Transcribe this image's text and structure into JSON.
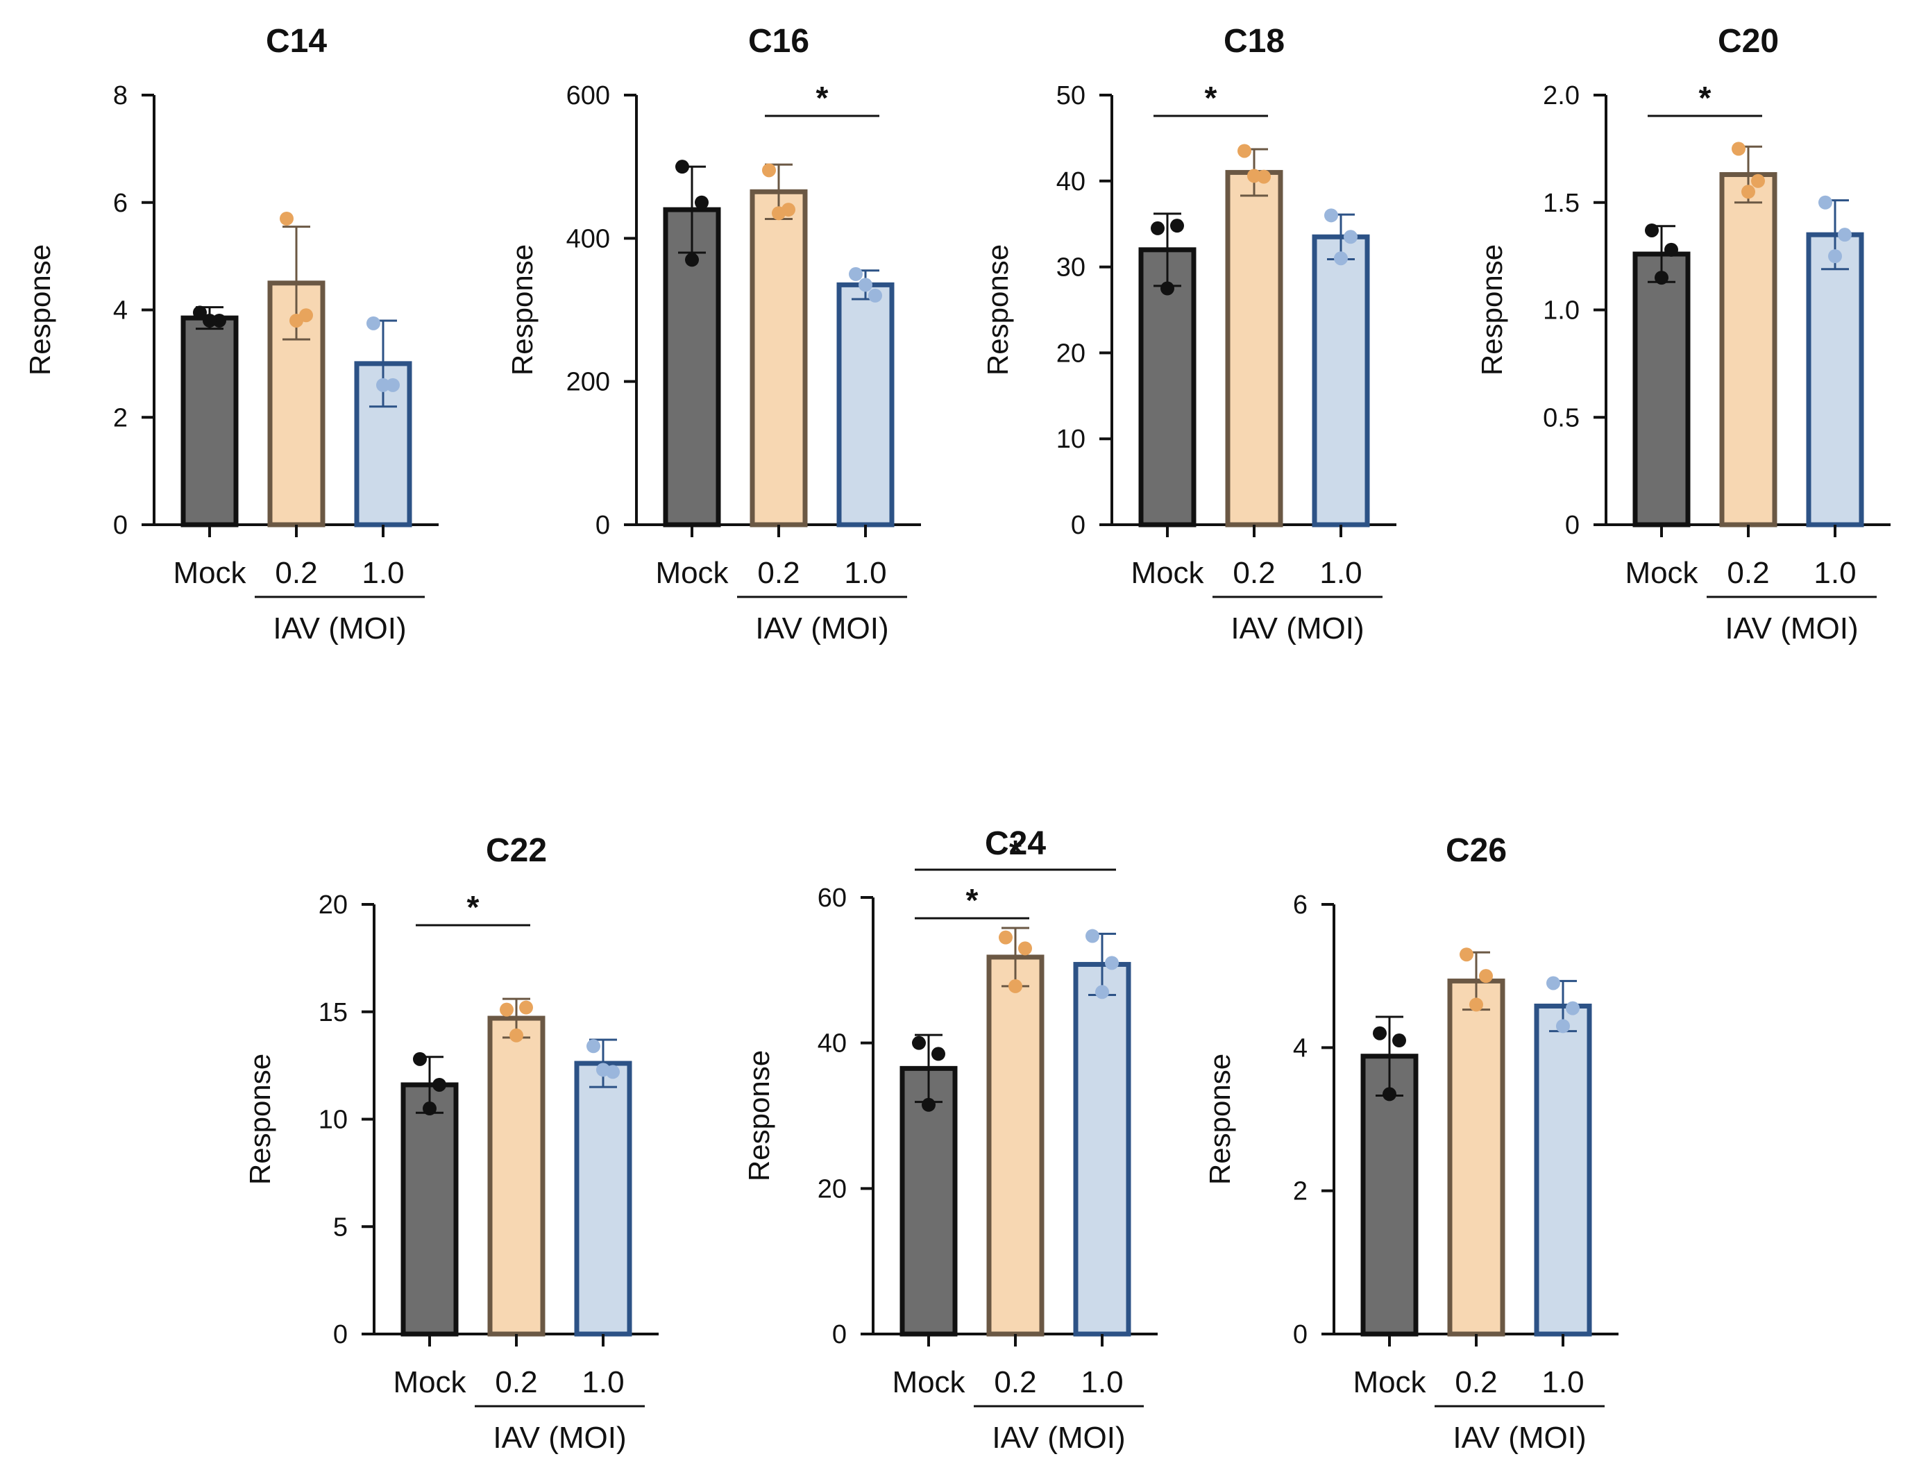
{
  "figure": {
    "group_label": "IAV (MOI)",
    "colors": {
      "mock_fill": "#6e6e6e",
      "mock_dot": "#111111",
      "moi02_fill": "#f7d7b2",
      "moi02_edge": "#6b5844",
      "moi02_dot": "#e8a45c",
      "moi10_fill": "#ccdaea",
      "moi10_edge": "#2c5286",
      "moi10_dot": "#9ab6dc",
      "axis": "#111111"
    }
  },
  "chart_data": [
    {
      "type": "bar",
      "title": "C14",
      "ylabel": "Response",
      "categories": [
        "Mock",
        "0.2",
        "1.0"
      ],
      "values": [
        3.85,
        4.5,
        3.0
      ],
      "errors": [
        0.2,
        1.05,
        0.8
      ],
      "points": [
        [
          3.95,
          3.8,
          3.8
        ],
        [
          5.7,
          3.9,
          3.8
        ],
        [
          3.75,
          2.6,
          2.6
        ]
      ],
      "ylim": [
        0,
        8
      ],
      "yticks": [
        "0",
        "2",
        "4",
        "6",
        "8"
      ],
      "ytick_values": [
        0,
        2,
        4,
        6,
        8
      ],
      "significance": []
    },
    {
      "type": "bar",
      "title": "C16",
      "ylabel": "Response",
      "categories": [
        "Mock",
        "0.2",
        "1.0"
      ],
      "values": [
        440,
        465,
        335
      ],
      "errors": [
        60,
        38,
        20
      ],
      "points": [
        [
          500,
          450,
          370
        ],
        [
          495,
          440,
          435
        ],
        [
          350,
          320,
          335
        ]
      ],
      "ylim": [
        0,
        600
      ],
      "yticks": [
        "0",
        "200",
        "400",
        "600"
      ],
      "ytick_values": [
        0,
        200,
        400,
        600
      ],
      "significance": [
        {
          "from": 1,
          "to": 2,
          "label": "*"
        }
      ]
    },
    {
      "type": "bar",
      "title": "C18",
      "ylabel": "Response",
      "categories": [
        "Mock",
        "0.2",
        "1.0"
      ],
      "values": [
        32,
        41,
        33.5
      ],
      "errors": [
        4.2,
        2.7,
        2.6
      ],
      "points": [
        [
          34.5,
          34.8,
          27.5
        ],
        [
          43.5,
          40.5,
          40.6
        ],
        [
          36,
          33.5,
          31
        ]
      ],
      "ylim": [
        0,
        50
      ],
      "yticks": [
        "0",
        "10",
        "20",
        "30",
        "40",
        "50"
      ],
      "ytick_values": [
        0,
        10,
        20,
        30,
        40,
        50
      ],
      "significance": [
        {
          "from": 0,
          "to": 1,
          "label": "*"
        }
      ]
    },
    {
      "type": "bar",
      "title": "C20",
      "ylabel": "Response",
      "categories": [
        "Mock",
        "0.2",
        "1.0"
      ],
      "values": [
        1.26,
        1.63,
        1.35
      ],
      "errors": [
        0.13,
        0.13,
        0.16
      ],
      "points": [
        [
          1.37,
          1.28,
          1.15
        ],
        [
          1.75,
          1.6,
          1.55
        ],
        [
          1.5,
          1.35,
          1.25
        ]
      ],
      "ylim": [
        0,
        2.0
      ],
      "yticks": [
        "0",
        "0.5",
        "1.0",
        "1.5",
        "2.0"
      ],
      "ytick_values": [
        0,
        0.5,
        1.0,
        1.5,
        2.0
      ],
      "significance": [
        {
          "from": 0,
          "to": 1,
          "label": "*"
        }
      ]
    },
    {
      "type": "bar",
      "title": "C22",
      "ylabel": "Response",
      "categories": [
        "Mock",
        "0.2",
        "1.0"
      ],
      "values": [
        11.6,
        14.7,
        12.6
      ],
      "errors": [
        1.3,
        0.9,
        1.1
      ],
      "points": [
        [
          12.8,
          11.6,
          10.5
        ],
        [
          15.1,
          15.2,
          13.9
        ],
        [
          13.4,
          12.2,
          12.3
        ]
      ],
      "ylim": [
        0,
        20
      ],
      "yticks": [
        "0",
        "5",
        "10",
        "15",
        "20"
      ],
      "ytick_values": [
        0,
        5,
        10,
        15,
        20
      ],
      "significance": [
        {
          "from": 0,
          "to": 1,
          "label": "*"
        }
      ]
    },
    {
      "type": "bar",
      "title": "C24",
      "ylabel": "Response",
      "categories": [
        "Mock",
        "0.2",
        "1.0"
      ],
      "values": [
        36.5,
        51.8,
        50.8
      ],
      "errors": [
        4.6,
        4.0,
        4.2
      ],
      "points": [
        [
          40,
          38.5,
          31.5
        ],
        [
          54.5,
          53,
          47.8
        ],
        [
          54.7,
          51,
          47
        ]
      ],
      "ylim": [
        0,
        60
      ],
      "yticks": [
        "0",
        "20",
        "40",
        "60"
      ],
      "ytick_values": [
        0,
        20,
        40,
        60
      ],
      "significance": [
        {
          "from": 0,
          "to": 1,
          "label": "*"
        },
        {
          "from": 0,
          "to": 2,
          "label": "*"
        }
      ]
    },
    {
      "type": "bar",
      "title": "C26",
      "ylabel": "Response",
      "categories": [
        "Mock",
        "0.2",
        "1.0"
      ],
      "values": [
        3.88,
        4.93,
        4.58
      ],
      "errors": [
        0.55,
        0.4,
        0.35
      ],
      "points": [
        [
          4.2,
          4.1,
          3.35
        ],
        [
          5.3,
          5.0,
          4.6
        ],
        [
          4.9,
          4.55,
          4.3
        ]
      ],
      "ylim": [
        0,
        6
      ],
      "yticks": [
        "0",
        "2",
        "4",
        "6"
      ],
      "ytick_values": [
        0,
        2,
        4,
        6
      ],
      "significance": []
    }
  ]
}
